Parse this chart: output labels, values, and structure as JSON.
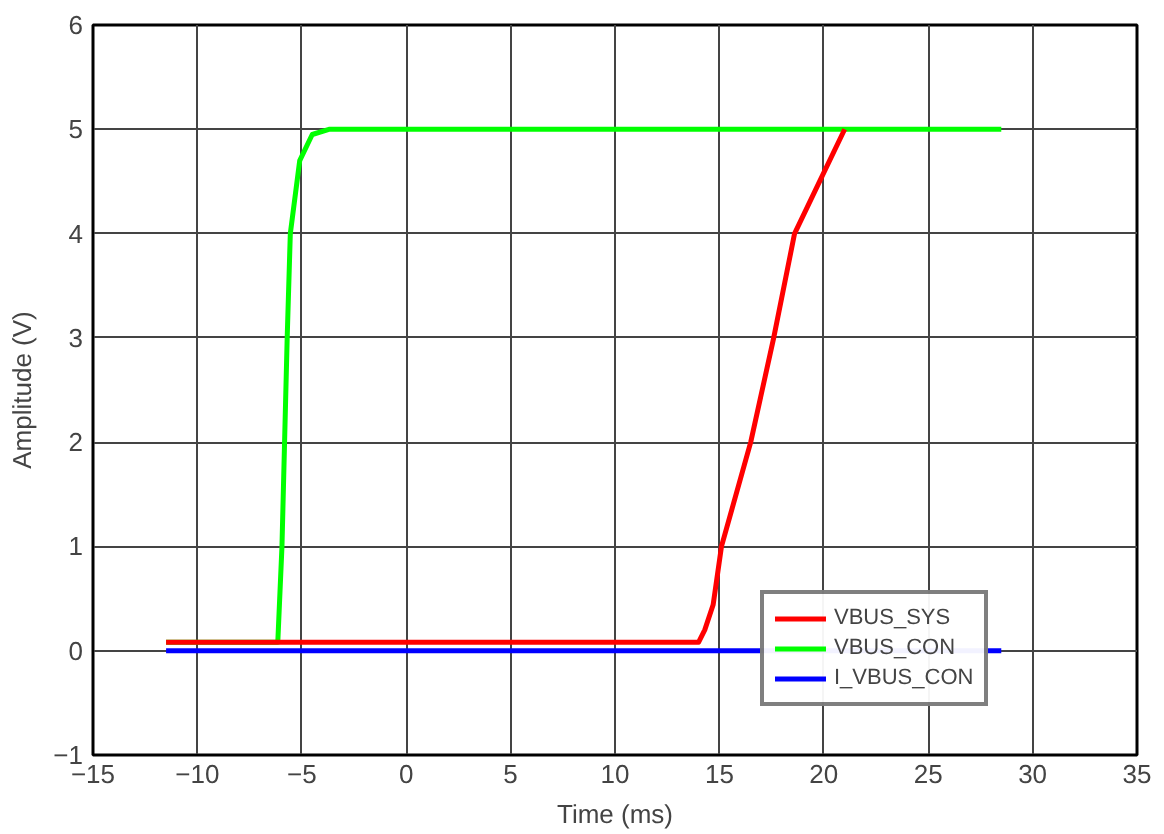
{
  "chart_data": {
    "type": "line",
    "xlabel": "Time (ms)",
    "ylabel": "Amplitude (V)",
    "xlim": [
      -15,
      35
    ],
    "ylim": [
      -1,
      6
    ],
    "xticks": [
      {
        "value": -15,
        "label": "−15"
      },
      {
        "value": -10,
        "label": "−10"
      },
      {
        "value": -5,
        "label": "−5"
      },
      0,
      5,
      10,
      15,
      20,
      25,
      30,
      35
    ],
    "yticks": [
      {
        "value": -1,
        "label": "−1"
      },
      0,
      1,
      2,
      3,
      4,
      5,
      6
    ],
    "grid": true,
    "legend": "bottom right",
    "line_style": "solid",
    "series": [
      {
        "name": "VBUS_SYS",
        "color": "#ff0000",
        "x": [
          -11.5,
          14.0,
          14.3,
          14.7,
          15.1,
          16.5,
          17.6,
          18.6,
          19.8,
          21.0
        ],
        "values": [
          0.08,
          0.08,
          0.2,
          0.44,
          1,
          2,
          3,
          4,
          4.5,
          5
        ]
      },
      {
        "name": "VBUS_CON",
        "color": "#00ff00",
        "x": [
          -11.5,
          -6.15,
          -5.95,
          -5.7,
          -5.55,
          -5.1,
          -4.5,
          -3.7,
          28.5
        ],
        "values": [
          0.08,
          0.08,
          1,
          3,
          4,
          4.7,
          4.95,
          5,
          5
        ]
      },
      {
        "name": "I_VBUS_CON",
        "color": "#0000ff",
        "x": [
          -11.5,
          28.5
        ],
        "values": [
          0,
          0
        ]
      }
    ]
  }
}
